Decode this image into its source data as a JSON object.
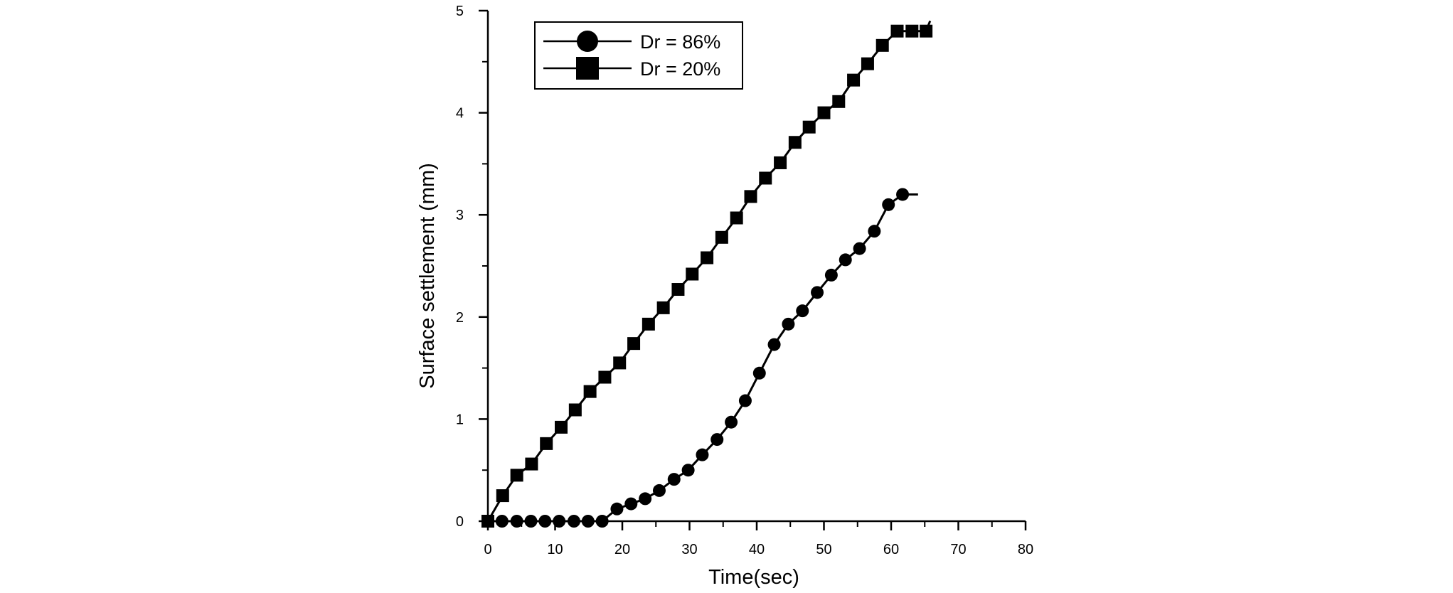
{
  "chart_data": {
    "type": "line",
    "title": "",
    "xlabel": "Time(sec)",
    "ylabel": "Surface settlement (mm)",
    "xlim": [
      0,
      80
    ],
    "ylim": [
      0,
      5
    ],
    "xticks": [
      0,
      10,
      20,
      30,
      40,
      50,
      60,
      70,
      80
    ],
    "xtick_labels": [
      "0",
      "10",
      "20",
      "30",
      "40",
      "50",
      "60",
      "70",
      "80"
    ],
    "yticks": [
      0,
      1,
      2,
      3,
      4,
      5
    ],
    "ytick_labels": [
      "0",
      "1",
      "2",
      "3",
      "4",
      "5"
    ],
    "grid": false,
    "legend_position": "top-left",
    "series": [
      {
        "name": "Dr = 86%",
        "marker": "circle",
        "color": "#000000",
        "x": [
          0,
          2.1,
          4.3,
          6.4,
          8.5,
          10.6,
          12.8,
          14.9,
          17.0,
          19.2,
          21.3,
          23.4,
          25.5,
          27.7,
          29.8,
          31.9,
          34.1,
          36.2,
          38.3,
          40.4,
          42.6,
          44.7,
          46.8,
          49.0,
          51.1,
          53.2,
          55.3,
          57.5,
          59.6,
          61.7
        ],
        "y": [
          0,
          0,
          0,
          0,
          0,
          0,
          0,
          0,
          0,
          0.12,
          0.17,
          0.22,
          0.3,
          0.41,
          0.5,
          0.65,
          0.8,
          0.97,
          1.18,
          1.45,
          1.73,
          1.93,
          2.06,
          2.24,
          2.41,
          2.56,
          2.67,
          2.84,
          3.1,
          3.2
        ],
        "line_end": [
          64.0,
          3.2
        ]
      },
      {
        "name": "Dr = 20%",
        "marker": "square",
        "color": "#000000",
        "x": [
          0,
          2.2,
          4.3,
          6.5,
          8.7,
          10.9,
          13.0,
          15.2,
          17.4,
          19.6,
          21.7,
          23.9,
          26.1,
          28.3,
          30.4,
          32.6,
          34.8,
          37.0,
          39.1,
          41.3,
          43.5,
          45.7,
          47.8,
          50.0,
          52.2,
          54.4,
          56.5,
          58.7,
          60.9,
          63.1,
          65.2
        ],
        "y": [
          0,
          0.25,
          0.45,
          0.56,
          0.76,
          0.92,
          1.09,
          1.27,
          1.41,
          1.55,
          1.74,
          1.93,
          2.09,
          2.27,
          2.42,
          2.58,
          2.78,
          2.97,
          3.18,
          3.36,
          3.51,
          3.71,
          3.86,
          4.0,
          4.11,
          4.32,
          4.48,
          4.66,
          4.8,
          4.8,
          4.8
        ],
        "line_end": [
          65.8,
          4.9
        ]
      }
    ]
  }
}
